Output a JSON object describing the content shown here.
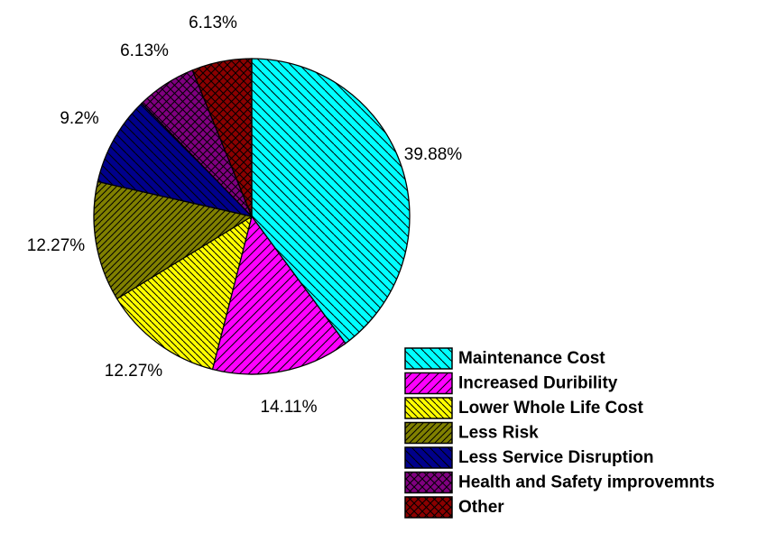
{
  "chart_data": {
    "type": "pie",
    "title": "",
    "legend_position": "bottom-right",
    "slices": [
      {
        "name": "Maintenance Cost",
        "value": 39.88,
        "label": "39.88%",
        "color": "#00FFFF",
        "pattern": "diag-back"
      },
      {
        "name": "Increased Duribility",
        "value": 14.11,
        "label": "14.11%",
        "color": "#FF00FF",
        "pattern": "diag-fwd"
      },
      {
        "name": "Lower Whole Life Cost",
        "value": 12.27,
        "label": "12.27%",
        "color": "#FFFF00",
        "pattern": "diag-back-dense"
      },
      {
        "name": "Less Risk",
        "value": 12.27,
        "label": "12.27%",
        "color": "#808000",
        "pattern": "diag-fwd-dense"
      },
      {
        "name": "Less Service Disruption",
        "value": 9.2,
        "label": "9.2%",
        "color": "#00008B",
        "pattern": "diag-back"
      },
      {
        "name": "Health and Safety improvemnts",
        "value": 6.13,
        "label": "6.13%",
        "color": "#800080",
        "pattern": "cross"
      },
      {
        "name": "Other",
        "value": 6.13,
        "label": "6.13%",
        "color": "#8B0000",
        "pattern": "cross"
      }
    ]
  }
}
